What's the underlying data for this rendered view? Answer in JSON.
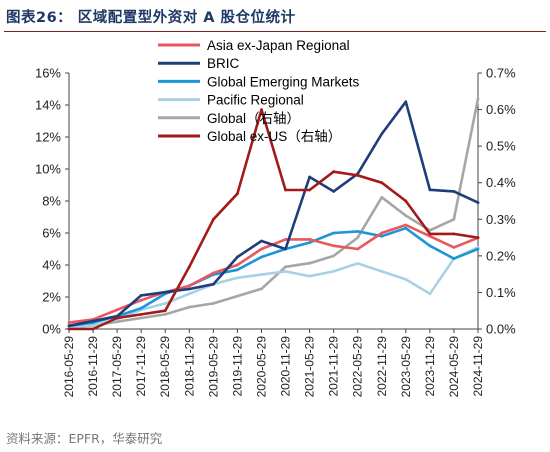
{
  "header": {
    "title": "图表26：  区域配置型外资对 A 股仓位统计"
  },
  "footer": {
    "source": "资料来源：EPFR，华泰研究"
  },
  "chart_data": {
    "type": "line",
    "x": [
      "2016-05-29",
      "2016-11-29",
      "2017-05-29",
      "2017-11-29",
      "2018-05-29",
      "2018-11-29",
      "2019-05-29",
      "2019-11-29",
      "2020-05-29",
      "2020-11-29",
      "2021-05-29",
      "2021-11-29",
      "2022-05-29",
      "2022-11-29",
      "2023-05-29",
      "2023-11-29",
      "2024-05-29",
      "2024-11-29"
    ],
    "x_ticks": [
      "2016-05-29",
      "2016-11-29",
      "2017-05-29",
      "2017-11-29",
      "2018-05-29",
      "2018-11-29",
      "2019-05-29",
      "2019-11-29",
      "2020-05-29",
      "2020-11-29",
      "2021-05-29",
      "2021-11-29",
      "2022-05-29",
      "2022-11-29",
      "2023-05-29",
      "2023-11-29",
      "2024-05-29",
      "2024-11-29"
    ],
    "y_left_ticks": [
      "0%",
      "2%",
      "4%",
      "6%",
      "8%",
      "10%",
      "12%",
      "14%",
      "16%"
    ],
    "y_right_ticks": [
      "0.0%",
      "0.1%",
      "0.2%",
      "0.3%",
      "0.4%",
      "0.5%",
      "0.6%",
      "0.7%"
    ],
    "ylim_left": [
      0,
      16
    ],
    "ylim_right": [
      0,
      0.7
    ],
    "legend_position": "top-center",
    "series": [
      {
        "name": "Asia ex-Japan Regional",
        "color": "#e8585e",
        "axis": "left",
        "values": [
          0.4,
          0.6,
          1.2,
          1.8,
          2.3,
          2.7,
          3.5,
          4.0,
          5.0,
          5.6,
          5.6,
          5.2,
          5.0,
          6.0,
          6.5,
          5.8,
          5.1,
          5.7
        ]
      },
      {
        "name": "BRIC",
        "color": "#1f3d7a",
        "axis": "left",
        "values": [
          0.2,
          0.5,
          0.8,
          2.1,
          2.3,
          2.5,
          2.8,
          4.5,
          5.5,
          5.0,
          9.5,
          8.6,
          9.7,
          12.2,
          14.2,
          8.7,
          8.6,
          7.9
        ]
      },
      {
        "name": "Global Emerging Markets",
        "color": "#1a97d6",
        "axis": "left",
        "values": [
          0.2,
          0.4,
          0.8,
          1.3,
          2.2,
          2.7,
          3.4,
          3.7,
          4.5,
          5.0,
          5.4,
          6.0,
          6.1,
          5.8,
          6.3,
          5.2,
          4.4,
          5.0
        ]
      },
      {
        "name": "Pacific Regional",
        "color": "#a8d1e6",
        "axis": "left",
        "values": [
          0.1,
          0.2,
          0.6,
          1.2,
          1.6,
          2.2,
          2.8,
          3.2,
          3.4,
          3.6,
          3.3,
          3.6,
          4.1,
          3.6,
          3.1,
          2.2,
          4.4,
          5.1
        ]
      },
      {
        "name": "Global（右轴）",
        "color": "#a6a6a6",
        "axis": "right",
        "values": [
          0.0,
          0.01,
          0.02,
          0.03,
          0.04,
          0.06,
          0.07,
          0.09,
          0.11,
          0.17,
          0.18,
          0.2,
          0.25,
          0.36,
          0.31,
          0.27,
          0.3,
          0.63
        ]
      },
      {
        "name": "Global ex-US（右轴）",
        "color": "#a21a1a",
        "axis": "right",
        "values": [
          0.0,
          0.0,
          0.03,
          0.04,
          0.05,
          0.17,
          0.3,
          0.37,
          0.6,
          0.38,
          0.38,
          0.43,
          0.42,
          0.4,
          0.35,
          0.26,
          0.26,
          0.25
        ]
      }
    ]
  }
}
